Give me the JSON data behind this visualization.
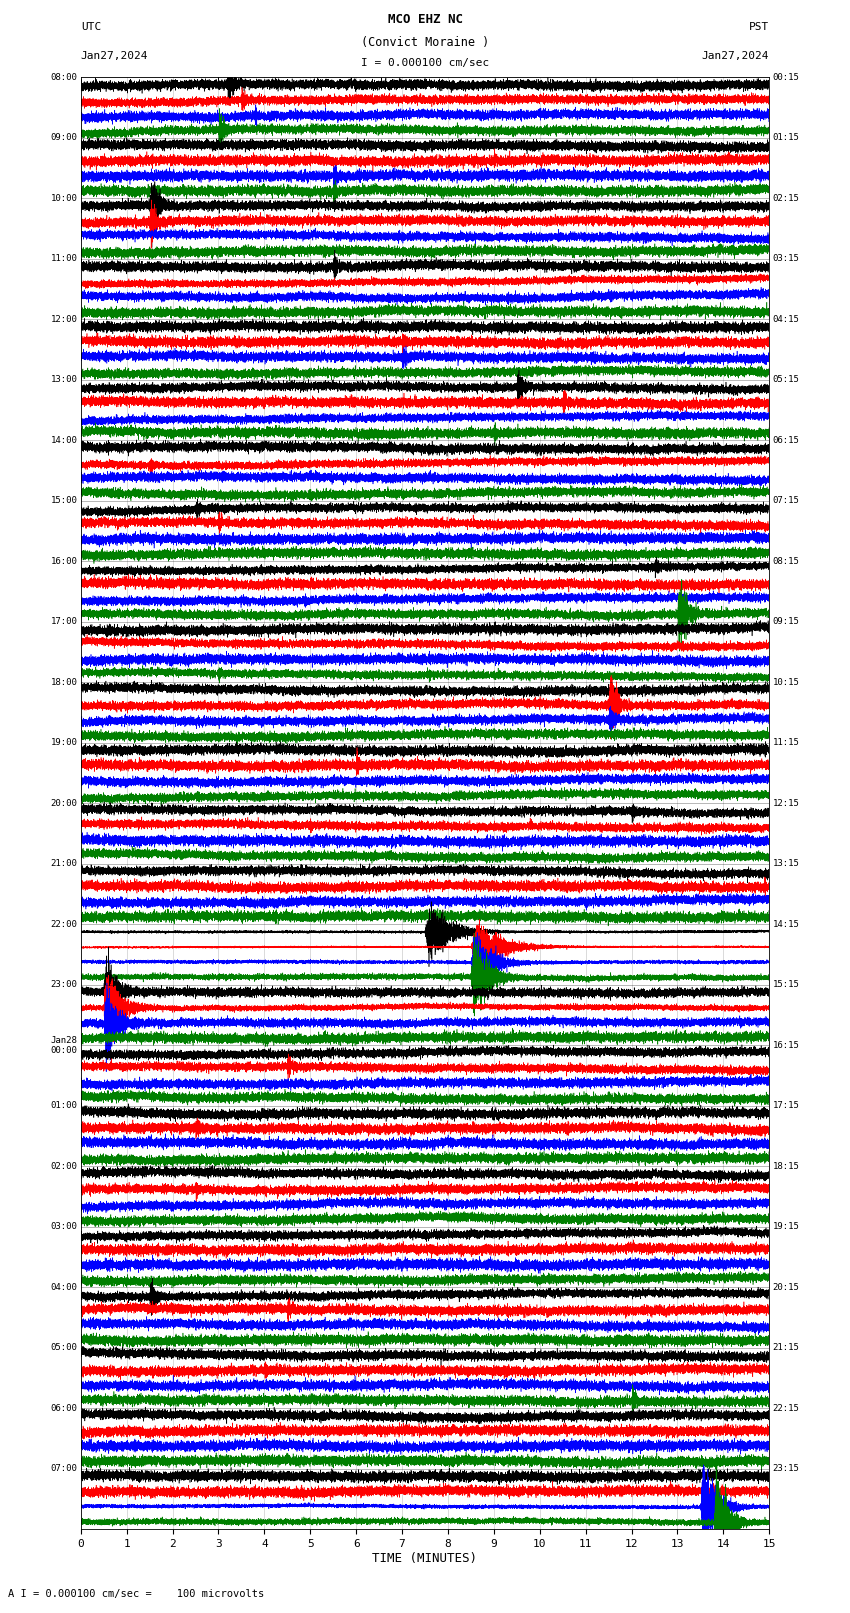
{
  "title_line1": "MCO EHZ NC",
  "title_line2": "(Convict Moraine )",
  "scale_label": "I = 0.000100 cm/sec",
  "bottom_label": "A I = 0.000100 cm/sec =    100 microvolts",
  "xlabel": "TIME (MINUTES)",
  "left_times_utc": [
    "08:00",
    "09:00",
    "10:00",
    "11:00",
    "12:00",
    "13:00",
    "14:00",
    "15:00",
    "16:00",
    "17:00",
    "18:00",
    "19:00",
    "20:00",
    "21:00",
    "22:00",
    "23:00",
    "Jan28\n00:00",
    "01:00",
    "02:00",
    "03:00",
    "04:00",
    "05:00",
    "06:00",
    "07:00"
  ],
  "right_times_pst": [
    "00:15",
    "01:15",
    "02:15",
    "03:15",
    "04:15",
    "05:15",
    "06:15",
    "07:15",
    "08:15",
    "09:15",
    "10:15",
    "11:15",
    "12:15",
    "13:15",
    "14:15",
    "15:15",
    "16:15",
    "17:15",
    "18:15",
    "19:15",
    "20:15",
    "21:15",
    "22:15",
    "23:15"
  ],
  "n_rows": 24,
  "traces_per_row": 4,
  "colors": [
    "black",
    "red",
    "blue",
    "green"
  ],
  "fig_bg": "white",
  "minutes": 15,
  "xmin": 0,
  "xmax": 15,
  "xticks": [
    0,
    1,
    2,
    3,
    4,
    5,
    6,
    7,
    8,
    9,
    10,
    11,
    12,
    13,
    14,
    15
  ],
  "events": [
    {
      "row": 0,
      "col": 0,
      "time": 3.2,
      "amp": 6.0,
      "dur": 25
    },
    {
      "row": 0,
      "col": 1,
      "time": 3.5,
      "amp": 3.0,
      "dur": 20
    },
    {
      "row": 0,
      "col": 2,
      "time": 3.8,
      "amp": 2.5,
      "dur": 15
    },
    {
      "row": 0,
      "col": 3,
      "time": 3.0,
      "amp": 5.0,
      "dur": 30
    },
    {
      "row": 1,
      "col": 1,
      "time": 9.0,
      "amp": 2.5,
      "dur": 15
    },
    {
      "row": 1,
      "col": 2,
      "time": 5.5,
      "amp": 3.0,
      "dur": 20
    },
    {
      "row": 1,
      "col": 3,
      "time": 5.5,
      "amp": 2.5,
      "dur": 15
    },
    {
      "row": 2,
      "col": 0,
      "time": 1.5,
      "amp": 8.0,
      "dur": 40
    },
    {
      "row": 2,
      "col": 1,
      "time": 1.5,
      "amp": 5.0,
      "dur": 30
    },
    {
      "row": 3,
      "col": 0,
      "time": 5.5,
      "amp": 3.5,
      "dur": 20
    },
    {
      "row": 4,
      "col": 1,
      "time": 7.0,
      "amp": 2.5,
      "dur": 15
    },
    {
      "row": 4,
      "col": 2,
      "time": 7.0,
      "amp": 3.0,
      "dur": 20
    },
    {
      "row": 5,
      "col": 0,
      "time": 9.5,
      "amp": 4.0,
      "dur": 30
    },
    {
      "row": 5,
      "col": 1,
      "time": 10.5,
      "amp": 3.0,
      "dur": 20
    },
    {
      "row": 5,
      "col": 3,
      "time": 9.0,
      "amp": 2.5,
      "dur": 15
    },
    {
      "row": 6,
      "col": 0,
      "time": 1.0,
      "amp": 2.0,
      "dur": 15
    },
    {
      "row": 6,
      "col": 1,
      "time": 1.5,
      "amp": 2.5,
      "dur": 15
    },
    {
      "row": 7,
      "col": 0,
      "time": 2.5,
      "amp": 3.0,
      "dur": 20
    },
    {
      "row": 7,
      "col": 1,
      "time": 3.0,
      "amp": 2.5,
      "dur": 15
    },
    {
      "row": 8,
      "col": 0,
      "time": 12.5,
      "amp": 3.0,
      "dur": 20
    },
    {
      "row": 8,
      "col": 3,
      "time": 13.0,
      "amp": 8.0,
      "dur": 50
    },
    {
      "row": 9,
      "col": 3,
      "time": 3.0,
      "amp": 2.5,
      "dur": 15
    },
    {
      "row": 10,
      "col": 1,
      "time": 11.5,
      "amp": 8.0,
      "dur": 40
    },
    {
      "row": 10,
      "col": 2,
      "time": 11.5,
      "amp": 4.0,
      "dur": 25
    },
    {
      "row": 11,
      "col": 0,
      "time": 14.9,
      "amp": 3.0,
      "dur": 5
    },
    {
      "row": 11,
      "col": 1,
      "time": 6.0,
      "amp": 2.5,
      "dur": 15
    },
    {
      "row": 11,
      "col": 2,
      "time": 6.5,
      "amp": 2.0,
      "dur": 10
    },
    {
      "row": 12,
      "col": 0,
      "time": 12.0,
      "amp": 2.5,
      "dur": 15
    },
    {
      "row": 12,
      "col": 1,
      "time": 5.0,
      "amp": 2.0,
      "dur": 10
    },
    {
      "row": 13,
      "col": 0,
      "time": 14.5,
      "amp": 2.0,
      "dur": 10
    },
    {
      "row": 13,
      "col": 1,
      "time": 14.9,
      "amp": 3.0,
      "dur": 5
    },
    {
      "row": 14,
      "col": 0,
      "time": 7.5,
      "amp": 25.0,
      "dur": 120
    },
    {
      "row": 14,
      "col": 1,
      "time": 8.5,
      "amp": 30.0,
      "dur": 150
    },
    {
      "row": 14,
      "col": 2,
      "time": 8.5,
      "amp": 20.0,
      "dur": 100
    },
    {
      "row": 14,
      "col": 3,
      "time": 8.5,
      "amp": 15.0,
      "dur": 80
    },
    {
      "row": 15,
      "col": 0,
      "time": 0.5,
      "amp": 8.0,
      "dur": 60
    },
    {
      "row": 15,
      "col": 1,
      "time": 0.5,
      "amp": 15.0,
      "dur": 80
    },
    {
      "row": 15,
      "col": 2,
      "time": 0.5,
      "amp": 10.0,
      "dur": 60
    },
    {
      "row": 16,
      "col": 1,
      "time": 4.5,
      "amp": 4.0,
      "dur": 20
    },
    {
      "row": 17,
      "col": 1,
      "time": 2.5,
      "amp": 3.0,
      "dur": 20
    },
    {
      "row": 18,
      "col": 1,
      "time": 2.5,
      "amp": 2.5,
      "dur": 15
    },
    {
      "row": 20,
      "col": 0,
      "time": 1.5,
      "amp": 5.0,
      "dur": 30
    },
    {
      "row": 20,
      "col": 1,
      "time": 4.5,
      "amp": 3.0,
      "dur": 20
    },
    {
      "row": 21,
      "col": 1,
      "time": 4.0,
      "amp": 2.5,
      "dur": 15
    },
    {
      "row": 21,
      "col": 3,
      "time": 12.0,
      "amp": 3.5,
      "dur": 25
    },
    {
      "row": 23,
      "col": 2,
      "time": 13.5,
      "amp": 25.0,
      "dur": 80
    },
    {
      "row": 23,
      "col": 3,
      "time": 13.8,
      "amp": 20.0,
      "dur": 60
    }
  ]
}
